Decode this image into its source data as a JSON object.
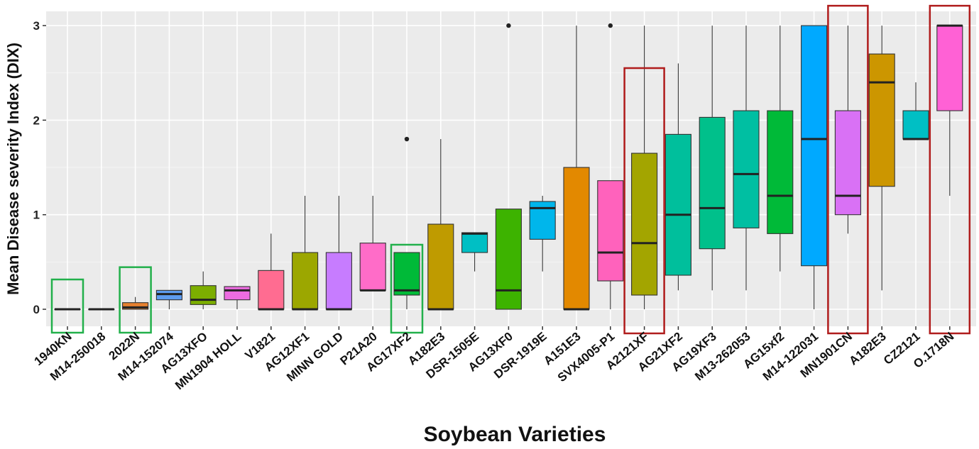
{
  "chart_data": {
    "type": "boxplot",
    "xlabel": "Soybean Varieties",
    "ylabel": "Mean Disease severity Index (DIX)",
    "ylim": [
      -0.2,
      3.15
    ],
    "yticks": [
      0,
      1,
      2,
      3
    ],
    "grid": true,
    "legend": "none",
    "categories": [
      "1940KN",
      "M14-250018",
      "2022N",
      "M14-152074",
      "AG13XFO",
      "MN1904 HOLL",
      "V1821",
      "AG12XF1",
      "MINN GOLD",
      "P21A20",
      "AG17XF2",
      "A182E3",
      "DSR-1505E",
      "AG13XF0",
      "DSR-1919E",
      "A151E3",
      "SVX4005-P1",
      "A2121XF",
      "AG21XF2",
      "AG19XF3",
      "M13-262053",
      "AG15xf2",
      "M14-122031",
      "MN1901CN",
      "A182E3",
      "CZ2121",
      "O.1718N"
    ],
    "boxes": [
      {
        "category": "1940KN",
        "min": 0,
        "q1": 0,
        "median": 0,
        "q3": 0,
        "max": 0,
        "color": "#F8766D",
        "highlight": "green"
      },
      {
        "category": "M14-250018",
        "min": 0,
        "q1": 0,
        "median": 0,
        "q3": 0,
        "max": 0,
        "color": "#EA8331"
      },
      {
        "category": "2022N",
        "min": 0,
        "q1": 0,
        "median": 0.02,
        "q3": 0.07,
        "max": 0.13,
        "color": "#E7812F",
        "highlight": "green"
      },
      {
        "category": "M14-152074",
        "min": 0,
        "q1": 0.1,
        "median": 0.16,
        "q3": 0.2,
        "max": 0.2,
        "color": "#5E9CF0"
      },
      {
        "category": "AG13XFO",
        "min": 0,
        "q1": 0.05,
        "median": 0.1,
        "q3": 0.25,
        "max": 0.4,
        "color": "#7CAE00"
      },
      {
        "category": "MN1904 HOLL",
        "min": 0,
        "q1": 0.1,
        "median": 0.2,
        "q3": 0.24,
        "max": 0.24,
        "color": "#EC6CE0"
      },
      {
        "category": "V1821",
        "min": 0,
        "q1": 0,
        "median": 0,
        "q3": 0.41,
        "max": 0.8,
        "color": "#FF6C91"
      },
      {
        "category": "AG12XF1",
        "min": 0,
        "q1": 0,
        "median": 0,
        "q3": 0.6,
        "max": 1.2,
        "color": "#9CA700"
      },
      {
        "category": "MINN GOLD",
        "min": 0,
        "q1": 0,
        "median": 0,
        "q3": 0.6,
        "max": 1.2,
        "color": "#C77CFF"
      },
      {
        "category": "P21A20",
        "min": 0.2,
        "q1": 0.2,
        "median": 0.2,
        "q3": 0.7,
        "max": 1.2,
        "color": "#FF6CC8"
      },
      {
        "category": "AG17XF2",
        "min": 0,
        "q1": 0.15,
        "median": 0.2,
        "q3": 0.6,
        "max": 0.6,
        "outliers": [
          1.8
        ],
        "color": "#00BA38",
        "highlight": "green"
      },
      {
        "category": "A182E3",
        "min": 0,
        "q1": 0,
        "median": 0,
        "q3": 0.9,
        "max": 1.8,
        "color": "#BF9B00"
      },
      {
        "category": "DSR-1505E",
        "min": 0.4,
        "q1": 0.6,
        "median": 0.8,
        "q3": 0.81,
        "max": 0.81,
        "color": "#00BFC4"
      },
      {
        "category": "AG13XF0",
        "min": 0,
        "q1": 0,
        "median": 0.2,
        "q3": 1.06,
        "max": 1.06,
        "outliers": [
          3
        ],
        "color": "#3DB300"
      },
      {
        "category": "DSR-1919E",
        "min": 0.4,
        "q1": 0.74,
        "median": 1.07,
        "q3": 1.14,
        "max": 1.2,
        "color": "#00B6EB"
      },
      {
        "category": "A151E3",
        "min": 0,
        "q1": 0,
        "median": 0,
        "q3": 1.5,
        "max": 3,
        "color": "#E38900"
      },
      {
        "category": "SVX4005-P1",
        "min": 0,
        "q1": 0.3,
        "median": 0.6,
        "q3": 1.36,
        "max": 1.36,
        "outliers": [
          3
        ],
        "color": "#FF62BC"
      },
      {
        "category": "A2121XF",
        "min": 0,
        "q1": 0.15,
        "median": 0.7,
        "q3": 1.65,
        "max": 3,
        "color": "#A3A500",
        "highlight": "red"
      },
      {
        "category": "AG21XF2",
        "min": 0.2,
        "q1": 0.36,
        "median": 1,
        "q3": 1.85,
        "max": 2.6,
        "color": "#00BF9C"
      },
      {
        "category": "AG19XF3",
        "min": 0.2,
        "q1": 0.64,
        "median": 1.07,
        "q3": 2.03,
        "max": 3,
        "color": "#00C08B"
      },
      {
        "category": "M13-262053",
        "min": 0.2,
        "q1": 0.86,
        "median": 1.43,
        "q3": 2.1,
        "max": 3,
        "color": "#00BFA2"
      },
      {
        "category": "AG15xf2",
        "min": 0.4,
        "q1": 0.8,
        "median": 1.2,
        "q3": 2.1,
        "max": 3,
        "color": "#00BA38"
      },
      {
        "category": "M14-122031",
        "min": 0,
        "q1": 0.46,
        "median": 1.8,
        "q3": 3,
        "max": 3,
        "color": "#00A9FF"
      },
      {
        "category": "MN1901CN",
        "min": 0.8,
        "q1": 1,
        "median": 1.2,
        "q3": 2.1,
        "max": 3,
        "color": "#D971F5",
        "highlight": "red"
      },
      {
        "category": "A182E3",
        "min": 0.2,
        "q1": 1.3,
        "median": 2.4,
        "q3": 2.7,
        "max": 3,
        "color": "#CC9600"
      },
      {
        "category": "CZ2121",
        "min": 1.8,
        "q1": 1.8,
        "median": 1.8,
        "q3": 2.1,
        "max": 2.4,
        "color": "#00BFC4"
      },
      {
        "category": "O.1718N",
        "min": 1.2,
        "q1": 2.1,
        "median": 3,
        "q3": 3,
        "max": 3,
        "color": "#FF61D5",
        "highlight": "red"
      }
    ]
  },
  "colors": {
    "panel_bg": "#EBEBEB",
    "grid_major": "#FFFFFF",
    "grid_minor": "#F4F4F4",
    "green_highlight": "#22B04B",
    "red_highlight": "#B01C1C"
  }
}
